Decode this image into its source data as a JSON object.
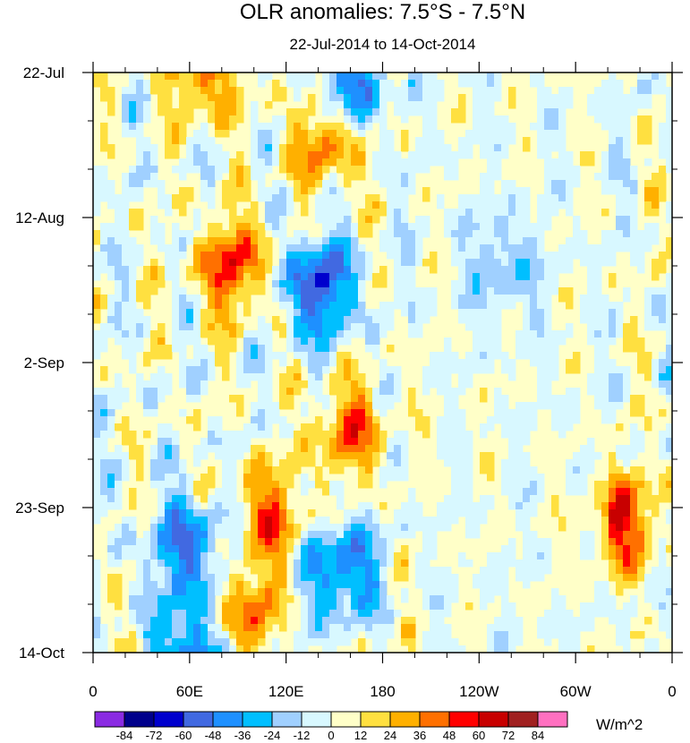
{
  "chart_data": {
    "type": "heatmap",
    "title": "OLR anomalies: 7.5°S - 7.5°N",
    "subtitle": "22-Jul-2014 to 14-Oct-2014",
    "x_ticks": [
      "0",
      "60E",
      "120E",
      "180",
      "120W",
      "60W",
      "0"
    ],
    "x_range_deg": [
      0,
      360
    ],
    "y_ticks": [
      "22-Jul",
      "12-Aug",
      "2-Sep",
      "23-Sep",
      "14-Oct"
    ],
    "y_range_days": [
      0,
      84
    ],
    "colorbar": {
      "labels": [
        "-84",
        "-72",
        "-60",
        "-48",
        "-36",
        "-24",
        "-12",
        "0",
        "12",
        "24",
        "36",
        "48",
        "60",
        "72",
        "84"
      ],
      "colors": [
        "#8a2be2",
        "#00008b",
        "#0000cd",
        "#4169e1",
        "#1e90ff",
        "#00bfff",
        "#a0d0ff",
        "#d8f8ff",
        "#ffffc8",
        "#ffe040",
        "#ffb000",
        "#ff7000",
        "#ff0000",
        "#c80000",
        "#a02020",
        "#ff70c0"
      ],
      "units": "W/m^2"
    },
    "features": [
      {
        "lon": 87,
        "day": 28,
        "value": 60
      },
      {
        "lon": 140,
        "day": 31,
        "value": -72
      },
      {
        "lon": 60,
        "day": 69,
        "value": -60
      },
      {
        "lon": 330,
        "day": 65,
        "value": 60
      },
      {
        "lon": 154,
        "day": 72,
        "value": -60
      },
      {
        "lon": 145,
        "day": 10,
        "value": 48
      },
      {
        "lon": 255,
        "day": 28,
        "value": -48
      },
      {
        "lon": 160,
        "day": 1,
        "value": -60
      },
      {
        "lon": 70,
        "day": 0,
        "value": 48
      },
      {
        "lon": 160,
        "day": 52,
        "value": 48
      },
      {
        "lon": 110,
        "day": 64,
        "value": 48
      },
      {
        "lon": 95,
        "day": 78,
        "value": 48
      },
      {
        "lon": 60,
        "day": 84,
        "value": -60
      }
    ]
  }
}
